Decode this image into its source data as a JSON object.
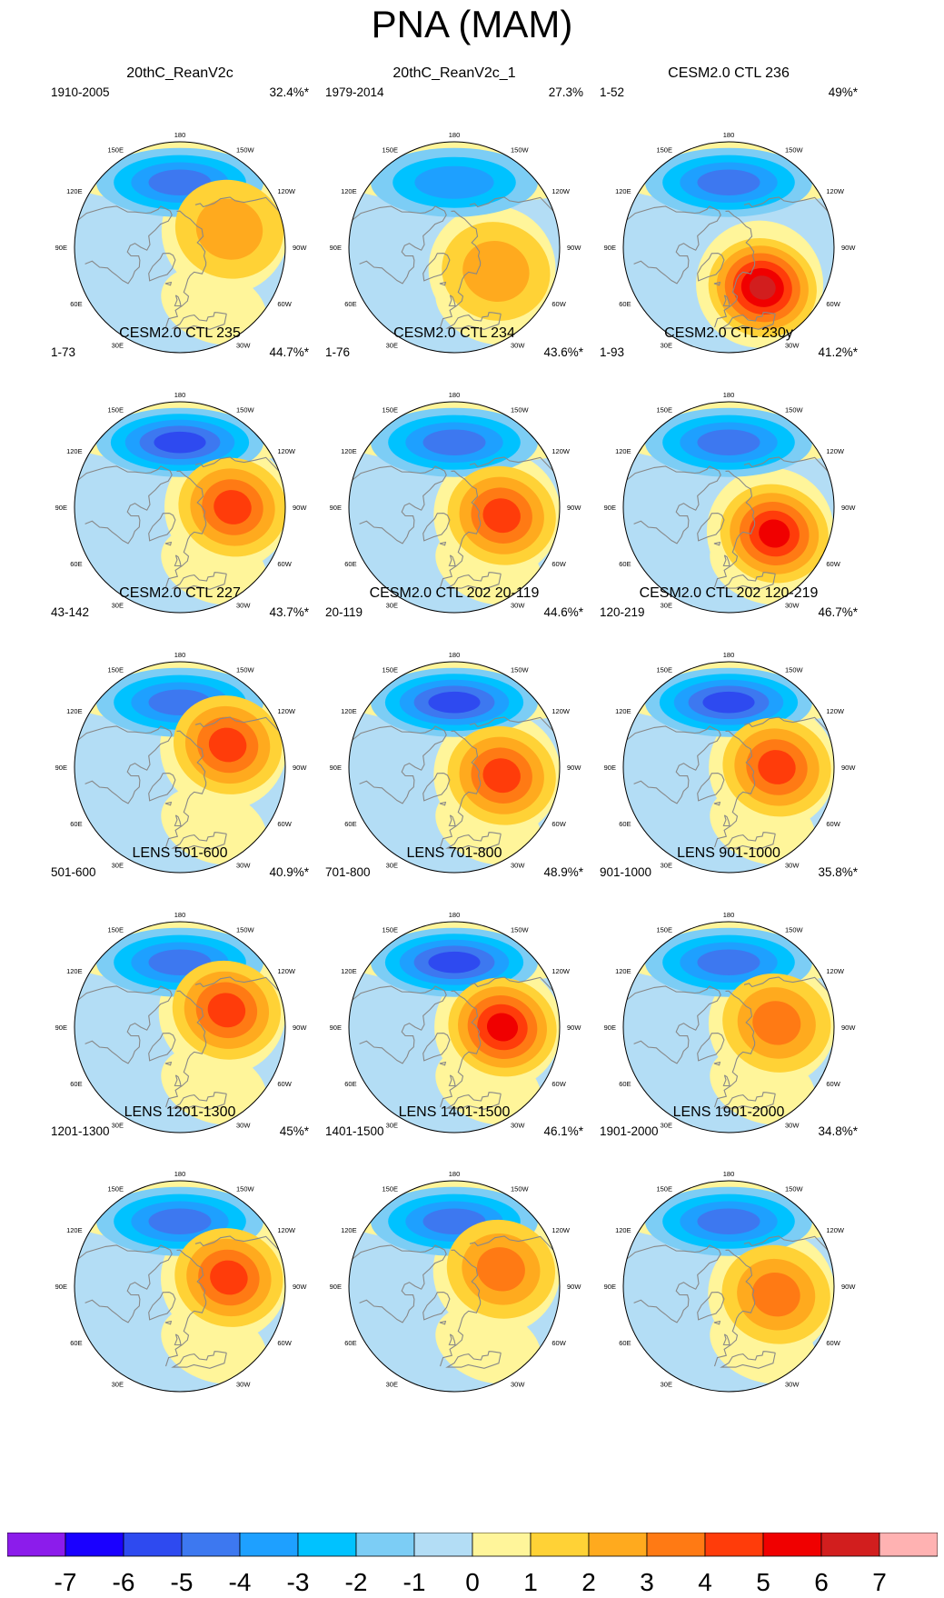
{
  "title": "PNA (MAM)",
  "longitude_labels": [
    "180",
    "150E",
    "120E",
    "90E",
    "60E",
    "30E",
    "0",
    "30W",
    "60W",
    "90W",
    "120W",
    "150W"
  ],
  "panels": [
    {
      "title": "20thC_ReanV2c",
      "period": "1910-2005",
      "percent": "32.4%*",
      "low": -4,
      "high": 2,
      "highLon": 110,
      "highLat": 55
    },
    {
      "title": "20thC_ReanV2c_1",
      "period": "1979-2014",
      "percent": "27.3%",
      "low": -3,
      "high": 2,
      "highLon": 60,
      "highLat": 58
    },
    {
      "title": "CESM2.0 CTL 236",
      "period": "1-52",
      "percent": "49%*",
      "low": -4,
      "high": 6,
      "highLon": 40,
      "highLat": 55
    },
    {
      "title": "CESM2.0 CTL 235",
      "period": "1-73",
      "percent": "44.7%*",
      "low": -5,
      "high": 4,
      "highLon": 90,
      "highLat": 55
    },
    {
      "title": "CESM2.0 CTL 234",
      "period": "1-76",
      "percent": "43.6%*",
      "low": -4,
      "high": 4,
      "highLon": 80,
      "highLat": 58
    },
    {
      "title": "CESM2.0 CTL 230y",
      "period": "1-93",
      "percent": "41.2%*",
      "low": -4,
      "high": 5,
      "highLon": 60,
      "highLat": 55
    },
    {
      "title": "CESM2.0 CTL 227",
      "period": "43-142",
      "percent": "43.7%*",
      "low": -4,
      "high": 4,
      "highLon": 115,
      "highLat": 55
    },
    {
      "title": "CESM2.0 CTL 202 20-119",
      "period": "20-119",
      "percent": "44.6%*",
      "low": -5,
      "high": 4,
      "highLon": 80,
      "highLat": 58
    },
    {
      "title": "CESM2.0 CTL 202 120-219",
      "period": "120-219",
      "percent": "46.7%*",
      "low": -5,
      "high": 4,
      "highLon": 90,
      "highLat": 58
    },
    {
      "title": "LENS 501-600",
      "period": "501-600",
      "percent": "40.9%*",
      "low": -4,
      "high": 4,
      "highLon": 110,
      "highLat": 57
    },
    {
      "title": "LENS 701-800",
      "period": "701-800",
      "percent": "48.9%*",
      "low": -5,
      "high": 5,
      "highLon": 90,
      "highLat": 58
    },
    {
      "title": "LENS 901-1000",
      "period": "901-1000",
      "percent": "35.8%*",
      "low": -4,
      "high": 3,
      "highLon": 95,
      "highLat": 58
    },
    {
      "title": "LENS 1201-1300",
      "period": "1201-1300",
      "percent": "45%*",
      "low": -4,
      "high": 4,
      "highLon": 100,
      "highLat": 57
    },
    {
      "title": "LENS 1401-1500",
      "period": "1401-1500",
      "percent": "46.1%*",
      "low": -4,
      "high": 3,
      "highLon": 110,
      "highLat": 57
    },
    {
      "title": "LENS 1901-2000",
      "period": "1901-2000",
      "percent": "34.8%*",
      "low": -4,
      "high": 3,
      "highLon": 80,
      "highLat": 58
    }
  ],
  "colorbar": {
    "labels": [
      "-7",
      "-6",
      "-5",
      "-4",
      "-3",
      "-2",
      "-1",
      "0",
      "1",
      "2",
      "3",
      "4",
      "5",
      "6",
      "7"
    ],
    "colors": [
      "#8c1ceb",
      "#1a00ff",
      "#2e4af0",
      "#3d78f0",
      "#1ea0ff",
      "#00c2ff",
      "#7ccdf5",
      "#b3ddf5",
      "#fff59a",
      "#ffd236",
      "#ffaa1e",
      "#ff7a14",
      "#ff3c0a",
      "#f00000",
      "#d21e1e",
      "#ffb2b2"
    ],
    "value_ticks": [
      -7,
      -6,
      -5,
      -4,
      -3,
      -2,
      -1,
      0,
      1,
      2,
      3,
      4,
      5,
      6,
      7
    ]
  },
  "colors": {
    "land_outline": "#888888",
    "frame": "#000000",
    "background": "#ffffff"
  }
}
